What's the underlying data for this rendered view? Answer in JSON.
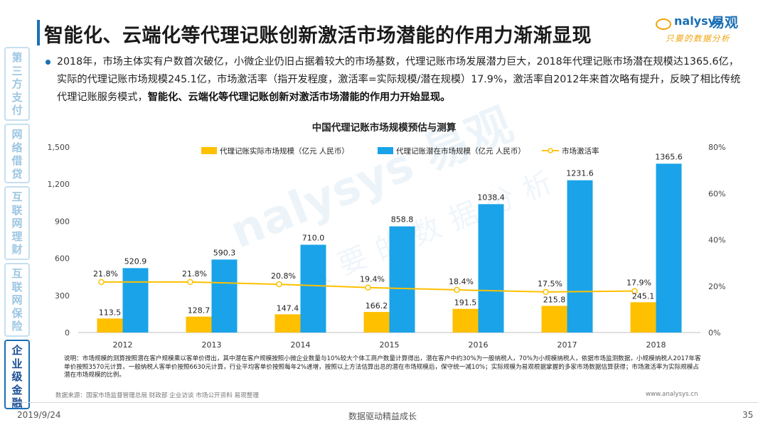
{
  "side_tabs": [
    {
      "label": "第三方支付",
      "active": false
    },
    {
      "label": "网络借贷",
      "active": false
    },
    {
      "label": "互联网理财",
      "active": false
    },
    {
      "label": "互联网保险",
      "active": false
    },
    {
      "label": "企业级金融",
      "active": true
    }
  ],
  "title": "智能化、云端化等代理记账创新激活市场潜能的作用力渐渐显现",
  "logo": {
    "brand": "nalysys",
    "cn": "易观",
    "sub": "只要的数据分析"
  },
  "watermark": {
    "brand": "nalysys 易观",
    "sub": "只要的数据分析"
  },
  "paragraph": {
    "normal": "2018年，市场主体实有户数首次破亿，小微企业仍旧占据着较大的市场基数，代理记账市场发展潜力巨大，2018年代理记账市场潜在规模达1365.6亿，实际的代理记账市场规模245.1亿，市场激活率（指开发程度，激活率=实际规模/潜在规模）17.9%，激活率自2012年来首次略有提升，反映了相比传统代理记账服务模式，",
    "bold": "智能化、云端化等代理记账创新对激活市场潜能的作用力开始显现。"
  },
  "chart_data": {
    "type": "bar",
    "title": "中国代理记账市场规模预估与测算",
    "categories": [
      "2012",
      "2013",
      "2014",
      "2015",
      "2016",
      "2017",
      "2018"
    ],
    "series": [
      {
        "name": "代理记账实际市场规模（亿元 人民币）",
        "kind": "bar",
        "axis": "left",
        "color": "#ffc000",
        "values": [
          113.5,
          128.7,
          147.4,
          166.2,
          191.5,
          215.8,
          245.1
        ]
      },
      {
        "name": "代理记账潜在市场规模（亿元 人民币）",
        "kind": "bar",
        "axis": "left",
        "color": "#1aa3e8",
        "values": [
          520.9,
          590.3,
          710.0,
          858.8,
          1038.4,
          1231.6,
          1365.6
        ]
      },
      {
        "name": "市场激活率",
        "kind": "line",
        "axis": "right",
        "color": "#ffc000",
        "values": [
          21.8,
          21.8,
          20.8,
          19.4,
          18.4,
          17.5,
          17.9
        ]
      }
    ],
    "value_labels": {
      "actual": [
        "113.5",
        "128.7",
        "147.4",
        "166.2",
        "191.5",
        "215.8",
        "245.1"
      ],
      "potential": [
        "520.9",
        "590.3",
        "710.0",
        "858.8",
        "1038.4",
        "1231.6",
        "1365.6"
      ],
      "rate": [
        "21.8%",
        "21.8%",
        "20.8%",
        "19.4%",
        "18.4%",
        "17.5%",
        "17.9%"
      ]
    },
    "y_left": {
      "min": 0,
      "max": 1500,
      "ticks": [
        0,
        300,
        600,
        900,
        1200,
        1500
      ],
      "tick_labels": [
        "0",
        "300",
        "600",
        "900",
        "1,200",
        "1,500"
      ]
    },
    "y_right": {
      "min": 0,
      "max": 80,
      "ticks": [
        0,
        20,
        40,
        60,
        80
      ],
      "tick_labels": [
        "0%",
        "20%",
        "40%",
        "60%",
        "80%"
      ]
    },
    "legend_position": "top",
    "grid": false
  },
  "note": "说明：市场规模的测算按照潜在客户规模乘以客单价得出，其中潜在客户规模按照小微企业数量与10%较大个体工商户数量计算得出，潜在客户中约30%为一般纳税人，70%为小规模纳税人，依据市场监测数据，小规模纳税人2017年客单价按照3570元计算，一般纳税人客单价按照6630元计算，行业平均客单价按照每年2%递增，按照以上方法估算出总的潜在市场规模后，保守统一减10%；实际规模为易观根据掌握的多家市场数据估算获得；市场激活率为实际规模占潜在市场规模的比例。",
  "source": "数据来源：国家市场监督管理总局  财政部 企业访谈 市场公开资料 易观整理",
  "site": "www.analysys.cn",
  "footer": {
    "date": "2019/9/24",
    "slogan": "数据驱动精益成长",
    "page": "35"
  }
}
